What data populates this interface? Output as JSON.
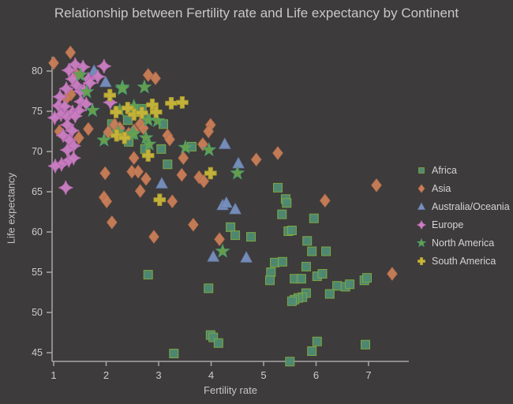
{
  "title": "Relationship between Fertility rate and Life expectancy by Continent",
  "colors": {
    "background": "#3d3b3c",
    "title_text": "#c9c8c9",
    "axis_line": "#a8a6a7",
    "tick_text": "#cdcccd",
    "legend_text": "#d4d3d4"
  },
  "chart_data": {
    "type": "scatter",
    "title": "Relationship between Fertility rate and Life expectancy by Continent",
    "xlabel": "Fertility rate",
    "ylabel": "Life expectancy",
    "x_ticks": [
      1,
      2,
      3,
      4,
      5,
      6,
      7
    ],
    "y_ticks": [
      45,
      50,
      55,
      60,
      65,
      70,
      75,
      80
    ],
    "xlim": [
      0.95,
      7.8
    ],
    "ylim": [
      43.5,
      83
    ],
    "grid": false,
    "legend_position": "right",
    "series": [
      {
        "name": "Africa",
        "marker": "square",
        "color": "#4f8b74",
        "edge": "#7ea83f",
        "points": [
          [
            2.11,
            73.4
          ],
          [
            2.68,
            75.3
          ],
          [
            2.76,
            74.1
          ],
          [
            2.41,
            73.9
          ],
          [
            3.09,
            73.4
          ],
          [
            2.43,
            71.2
          ],
          [
            2.74,
            70.3
          ],
          [
            3.05,
            70.3
          ],
          [
            3.63,
            70.6
          ],
          [
            3.17,
            68.4
          ],
          [
            5.27,
            65.5
          ],
          [
            5.42,
            64.1
          ],
          [
            5.44,
            63.6
          ],
          [
            5.35,
            62.2
          ],
          [
            5.47,
            60.1
          ],
          [
            4.37,
            60.6
          ],
          [
            4.46,
            59.6
          ],
          [
            4.76,
            59.4
          ],
          [
            5.96,
            61.7
          ],
          [
            5.54,
            60.2
          ],
          [
            5.83,
            58.9
          ],
          [
            5.92,
            57.6
          ],
          [
            6.19,
            57.6
          ],
          [
            2.8,
            54.7
          ],
          [
            5.21,
            56.2
          ],
          [
            5.36,
            56.3
          ],
          [
            5.14,
            55.0
          ],
          [
            5.12,
            54.0
          ],
          [
            3.95,
            53.0
          ],
          [
            5.81,
            55.7
          ],
          [
            5.59,
            54.2
          ],
          [
            5.72,
            54.2
          ],
          [
            6.02,
            54.5
          ],
          [
            6.12,
            54.8
          ],
          [
            6.4,
            53.3
          ],
          [
            6.56,
            53.2
          ],
          [
            6.64,
            53.5
          ],
          [
            6.92,
            54.0
          ],
          [
            6.97,
            54.3
          ],
          [
            6.26,
            52.3
          ],
          [
            5.81,
            52.4
          ],
          [
            5.74,
            51.9
          ],
          [
            5.66,
            51.8
          ],
          [
            5.59,
            51.6
          ],
          [
            5.54,
            51.4
          ],
          [
            3.99,
            47.2
          ],
          [
            4.04,
            46.9
          ],
          [
            4.14,
            46.2
          ],
          [
            3.29,
            44.9
          ],
          [
            5.5,
            43.9
          ],
          [
            6.94,
            46.0
          ],
          [
            6.02,
            46.4
          ],
          [
            5.92,
            45.2
          ]
        ]
      },
      {
        "name": "Asia",
        "marker": "diamond",
        "color": "#c97e58",
        "edge": "#b96f4b",
        "points": [
          [
            1.0,
            81.0
          ],
          [
            1.32,
            82.3
          ],
          [
            1.44,
            79.5
          ],
          [
            2.8,
            79.5
          ],
          [
            2.94,
            79.1
          ],
          [
            1.33,
            77.1
          ],
          [
            1.24,
            76.6
          ],
          [
            1.11,
            72.5
          ],
          [
            1.48,
            71.7
          ],
          [
            1.66,
            72.8
          ],
          [
            2.04,
            72.4
          ],
          [
            2.43,
            72.2
          ],
          [
            2.53,
            72.6
          ],
          [
            2.16,
            73.3
          ],
          [
            2.26,
            72.9
          ],
          [
            2.65,
            73.4
          ],
          [
            2.71,
            72.9
          ],
          [
            3.17,
            72.0
          ],
          [
            1.98,
            67.3
          ],
          [
            2.53,
            69.2
          ],
          [
            2.49,
            67.5
          ],
          [
            2.61,
            67.5
          ],
          [
            2.76,
            66.6
          ],
          [
            2.65,
            65.1
          ],
          [
            1.96,
            64.3
          ],
          [
            2.01,
            63.8
          ],
          [
            2.11,
            61.2
          ],
          [
            2.91,
            59.4
          ],
          [
            3.99,
            73.3
          ],
          [
            3.95,
            72.5
          ],
          [
            3.84,
            70.9
          ],
          [
            3.21,
            71.5
          ],
          [
            5.27,
            69.8
          ],
          [
            3.47,
            69.2
          ],
          [
            4.86,
            69.0
          ],
          [
            3.44,
            67.1
          ],
          [
            3.77,
            66.8
          ],
          [
            3.86,
            66.3
          ],
          [
            3.26,
            63.8
          ],
          [
            3.66,
            60.9
          ],
          [
            4.16,
            59.1
          ],
          [
            6.17,
            63.9
          ],
          [
            7.15,
            65.8
          ],
          [
            7.45,
            54.8
          ]
        ]
      },
      {
        "name": "Australia/Oceania",
        "marker": "triangle",
        "color": "#7990bf",
        "edge": "#687fae",
        "points": [
          [
            1.77,
            80.0
          ],
          [
            1.99,
            78.6
          ],
          [
            4.26,
            70.9
          ],
          [
            4.52,
            68.5
          ],
          [
            3.06,
            66.0
          ],
          [
            4.22,
            63.3
          ],
          [
            4.29,
            63.6
          ],
          [
            4.46,
            62.8
          ],
          [
            4.04,
            56.9
          ],
          [
            4.67,
            56.8
          ]
        ]
      },
      {
        "name": "Europe",
        "marker": "star4",
        "color": "#cb7fc3",
        "edge": "#b76bb1",
        "points": [
          [
            1.41,
            80.8
          ],
          [
            1.56,
            80.5
          ],
          [
            1.29,
            80.1
          ],
          [
            1.96,
            80.6
          ],
          [
            1.36,
            79.0
          ],
          [
            1.66,
            79.0
          ],
          [
            1.69,
            78.5
          ],
          [
            1.84,
            79.3
          ],
          [
            1.44,
            78.2
          ],
          [
            1.24,
            77.8
          ],
          [
            1.51,
            77.5
          ],
          [
            1.58,
            77.6
          ],
          [
            1.12,
            76.8
          ],
          [
            2.08,
            76.1
          ],
          [
            1.52,
            76.2
          ],
          [
            1.09,
            75.7
          ],
          [
            1.21,
            75.6
          ],
          [
            1.36,
            74.9
          ],
          [
            1.48,
            75.1
          ],
          [
            1.62,
            75.9
          ],
          [
            1.14,
            74.6
          ],
          [
            1.26,
            74.3
          ],
          [
            1.41,
            74.4
          ],
          [
            1.02,
            74.2
          ],
          [
            1.26,
            73.3
          ],
          [
            1.35,
            72.6
          ],
          [
            1.18,
            72.0
          ],
          [
            1.3,
            71.4
          ],
          [
            1.38,
            70.7
          ],
          [
            1.26,
            70.2
          ],
          [
            1.15,
            68.4
          ],
          [
            1.29,
            68.9
          ],
          [
            1.38,
            69.2
          ],
          [
            1.03,
            68.2
          ],
          [
            1.23,
            65.5
          ]
        ]
      },
      {
        "name": "North America",
        "marker": "star5",
        "color": "#67a24b",
        "edge": "#4d9f6d",
        "points": [
          [
            1.51,
            79.5
          ],
          [
            2.31,
            78.0
          ],
          [
            2.73,
            78.0
          ],
          [
            1.63,
            77.4
          ],
          [
            2.31,
            77.8
          ],
          [
            1.74,
            75.1
          ],
          [
            2.26,
            75.1
          ],
          [
            2.53,
            75.6
          ],
          [
            2.8,
            73.9
          ],
          [
            2.98,
            73.8
          ],
          [
            2.49,
            72.2
          ],
          [
            2.23,
            72.4
          ],
          [
            1.96,
            71.4
          ],
          [
            2.53,
            72.2
          ],
          [
            2.76,
            71.7
          ],
          [
            2.82,
            70.9
          ],
          [
            3.51,
            70.5
          ],
          [
            3.96,
            70.2
          ],
          [
            4.5,
            67.3
          ],
          [
            4.22,
            57.6
          ]
        ]
      },
      {
        "name": "South America",
        "marker": "cross",
        "color": "#c9b73a",
        "edge": "#a8982e",
        "points": [
          [
            2.07,
            77.0
          ],
          [
            2.41,
            75.4
          ],
          [
            2.19,
            74.9
          ],
          [
            2.53,
            74.6
          ],
          [
            2.68,
            74.8
          ],
          [
            2.88,
            75.8
          ],
          [
            2.95,
            74.9
          ],
          [
            3.24,
            76.0
          ],
          [
            2.2,
            72.0
          ],
          [
            2.35,
            71.7
          ],
          [
            2.8,
            69.5
          ],
          [
            3.45,
            76.1
          ],
          [
            3.02,
            64.0
          ],
          [
            3.99,
            67.3
          ]
        ]
      }
    ]
  }
}
